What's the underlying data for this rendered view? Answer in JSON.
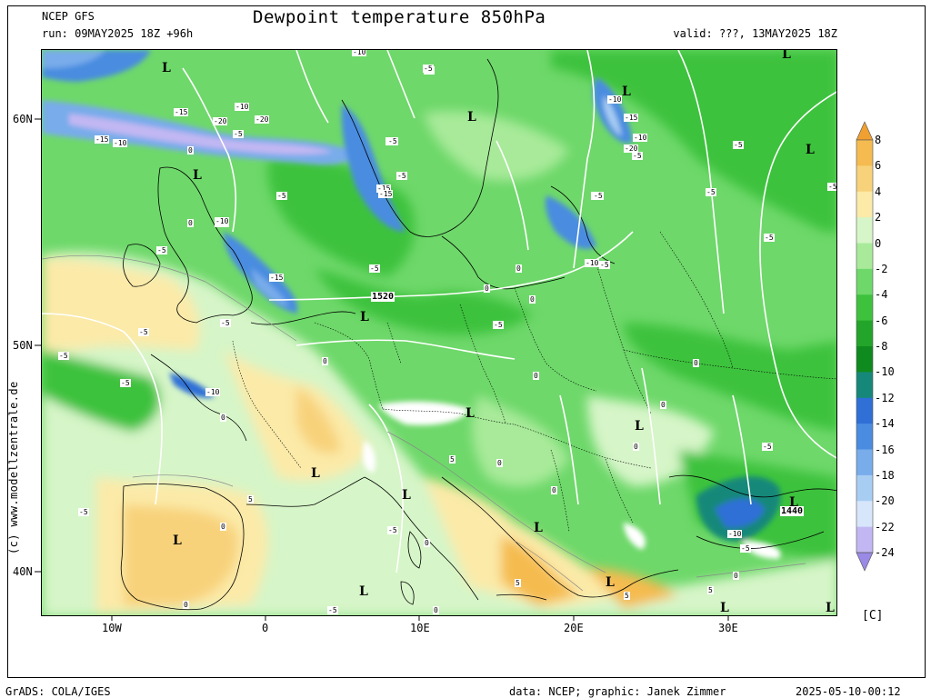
{
  "header": {
    "model": "NCEP GFS",
    "run": "run: 09MAY2025 18Z +96h",
    "title": "Dewpoint temperature 850hPa",
    "valid": "valid: ???, 13MAY2025 18Z"
  },
  "side_text": "(c) www.modellzentrale.de",
  "footer": {
    "software": "GrADS: COLA/IGES",
    "credit": "data: NCEP; graphic: Janek Zimmer",
    "timestamp": "2025-05-10-00:12"
  },
  "axes": {
    "lat_labels": [
      "60N",
      "50N",
      "40N"
    ],
    "lon_labels": [
      "10W",
      "0",
      "10E",
      "20E",
      "30E"
    ]
  },
  "colorbar": {
    "unit": "[C]",
    "labels": [
      "8",
      "6",
      "4",
      "2",
      "0",
      "-2",
      "-4",
      "-6",
      "-8",
      "-10",
      "-12",
      "-14",
      "-16",
      "-18",
      "-20",
      "-22",
      "-24"
    ],
    "colors": [
      "#f0a030",
      "#f5bb50",
      "#f8d27a",
      "#fbeaa8",
      "#d6f5c8",
      "#a8ea9a",
      "#6ed86a",
      "#3ec23e",
      "#22a52a",
      "#0f8a1e",
      "#16887a",
      "#2f6fd6",
      "#4a8ce0",
      "#78acea",
      "#a8cdf3",
      "#d7e6fb",
      "#c2b7f3",
      "#9a8ae6"
    ]
  },
  "map": {
    "low_markers": [
      "L",
      "L",
      "L",
      "L",
      "L",
      "L",
      "L",
      "L",
      "L",
      "L",
      "L",
      "L",
      "L",
      "L",
      "L",
      "L",
      "L",
      "L"
    ],
    "isobar_labels": [
      "1520",
      "1440"
    ],
    "contour_labels": [
      "-10",
      "-5",
      "-15",
      "-10",
      "-20",
      "-20",
      "-5",
      "-15",
      "-10",
      "-10",
      "-5",
      "-5",
      "-5",
      "-15",
      "-10",
      "-5",
      "-5",
      "-5",
      "-10",
      "-5",
      "-15",
      "-15",
      "-20",
      "-5",
      "-5",
      "-5",
      "-5",
      "-5",
      "-10",
      "-5",
      "-5",
      "-15",
      "-10",
      "-5",
      "0",
      "0",
      "0",
      "0",
      "-5",
      "-5",
      "-10",
      "-5",
      "0",
      "-5",
      "0",
      "-5",
      "0",
      "5",
      "0",
      "5",
      "-5",
      "0",
      "0",
      "0",
      "0",
      "0",
      "-5",
      "-10",
      "-5",
      "-5",
      "5",
      "0",
      "5",
      "0",
      "-5",
      "0",
      "0",
      "0",
      "5"
    ]
  }
}
